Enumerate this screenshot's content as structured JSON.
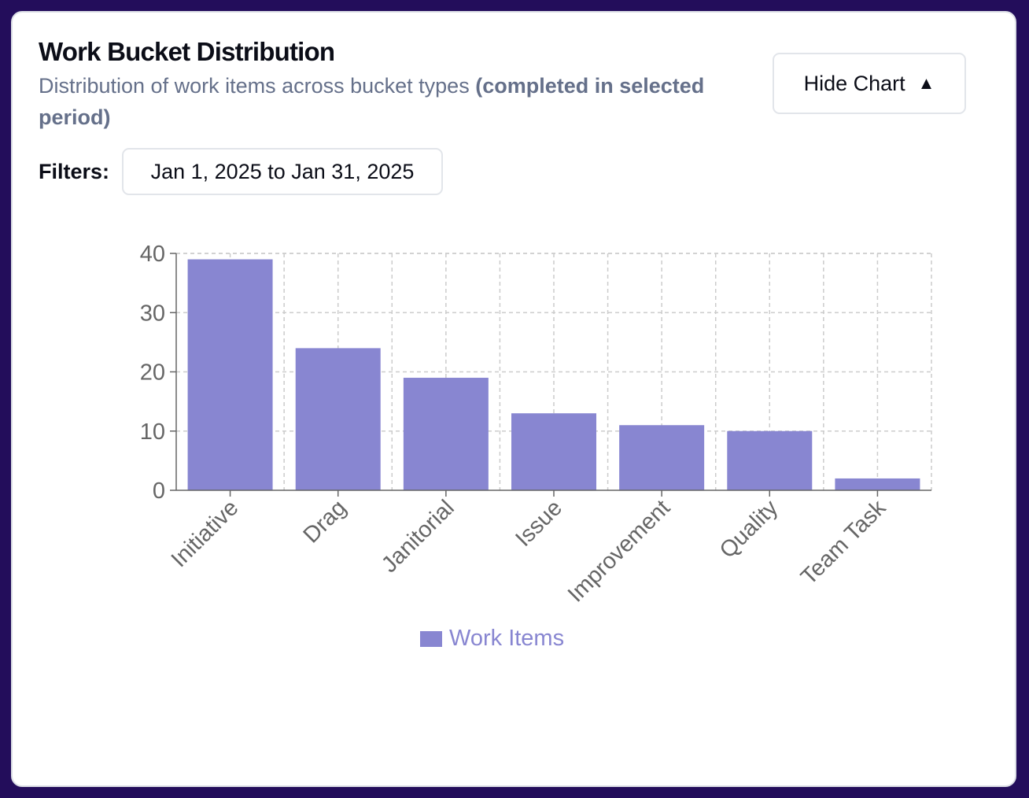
{
  "header": {
    "title": "Work Bucket Distribution",
    "subtitle_main": "Distribution of work items across bucket types",
    "subtitle_strong": "(completed in selected period)"
  },
  "toggle": {
    "label": "Hide Chart",
    "icon": "triangle-up-icon",
    "glyph": "▲"
  },
  "filters": {
    "label": "Filters:",
    "date_range": "Jan 1, 2025 to Jan 31, 2025"
  },
  "colors": {
    "bar": "#8886d1",
    "legend_text": "#8886d1",
    "card_background": "#ffffff",
    "page_background": "#230d5b"
  },
  "chart_data": {
    "type": "bar",
    "title": "",
    "xlabel": "",
    "ylabel": "",
    "categories": [
      "Initiative",
      "Drag",
      "Janitorial",
      "Issue",
      "Improvement",
      "Quality",
      "Team Task"
    ],
    "series": [
      {
        "name": "Work Items",
        "values": [
          39,
          24,
          19,
          13,
          11,
          10,
          2
        ]
      }
    ],
    "ylim": [
      0,
      40
    ],
    "yticks": [
      0,
      10,
      20,
      30,
      40
    ],
    "grid": true,
    "legend": "bottom-center"
  }
}
